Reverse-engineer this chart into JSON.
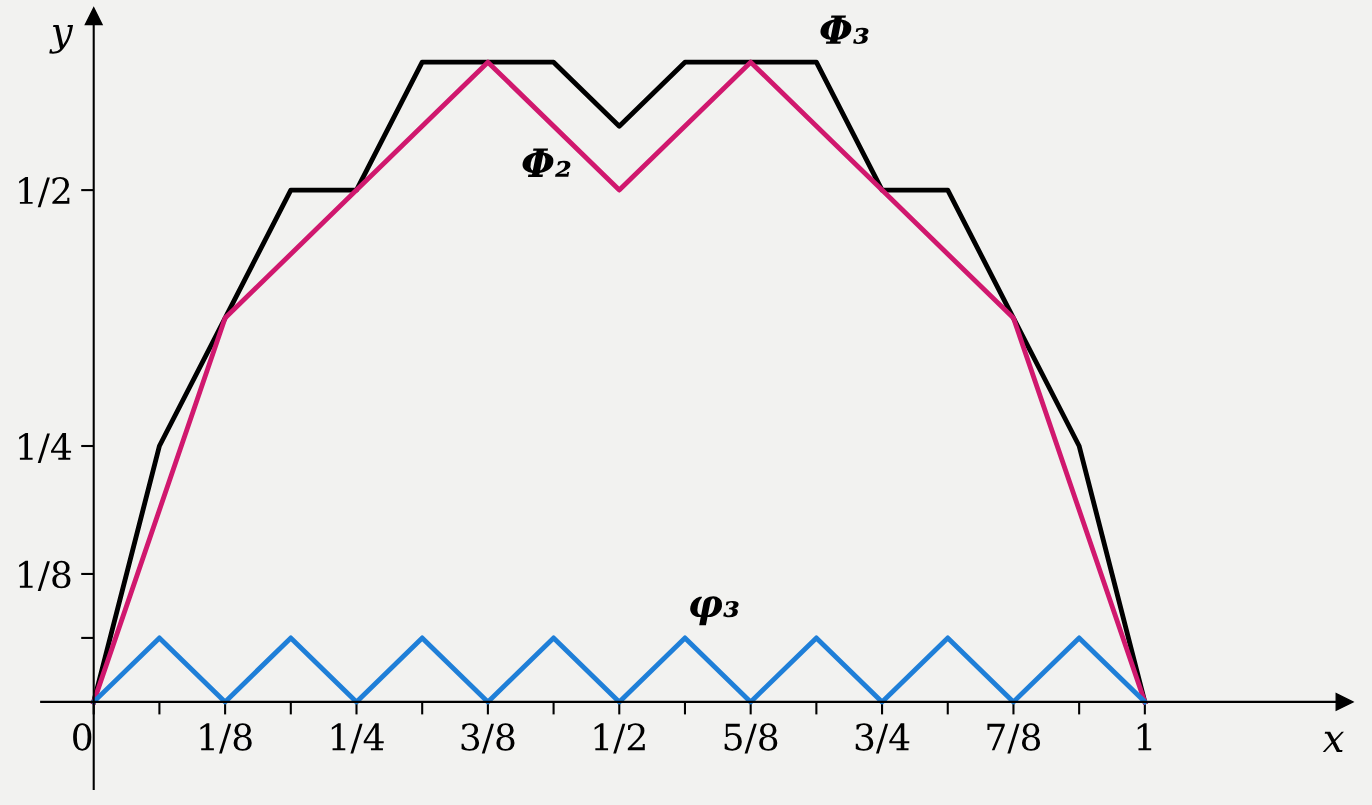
{
  "chart_data": {
    "type": "line",
    "xlabel": "x",
    "ylabel": "y",
    "xlim": [
      -0.05,
      1.19
    ],
    "ylim": [
      -0.085,
      0.67
    ],
    "xticks": [
      {
        "value": 0,
        "label": "0"
      },
      {
        "value": 0.0625,
        "label": null
      },
      {
        "value": 0.125,
        "label": "1/8"
      },
      {
        "value": 0.1875,
        "label": null
      },
      {
        "value": 0.25,
        "label": "1/4"
      },
      {
        "value": 0.3125,
        "label": null
      },
      {
        "value": 0.375,
        "label": "3/8"
      },
      {
        "value": 0.4375,
        "label": null
      },
      {
        "value": 0.5,
        "label": "1/2"
      },
      {
        "value": 0.5625,
        "label": null
      },
      {
        "value": 0.625,
        "label": "5/8"
      },
      {
        "value": 0.6875,
        "label": null
      },
      {
        "value": 0.75,
        "label": "3/4"
      },
      {
        "value": 0.8125,
        "label": null
      },
      {
        "value": 0.875,
        "label": "7/8"
      },
      {
        "value": 0.9375,
        "label": null
      },
      {
        "value": 1,
        "label": "1"
      }
    ],
    "yticks": [
      {
        "value": 0.0625,
        "label": null
      },
      {
        "value": 0.125,
        "label": "1/8"
      },
      {
        "value": 0.25,
        "label": "1/4"
      },
      {
        "value": 0.5,
        "label": "1/2"
      }
    ],
    "grid": false,
    "legend": false,
    "series": [
      {
        "name": "Φ₃",
        "color": "#000000",
        "x": [
          0,
          0.0625,
          0.125,
          0.1875,
          0.25,
          0.3125,
          0.4375,
          0.5,
          0.5625,
          0.6875,
          0.75,
          0.8125,
          0.875,
          0.9375,
          1
        ],
        "values": [
          0,
          0.25,
          0.375,
          0.5,
          0.5,
          0.625,
          0.625,
          0.5625,
          0.625,
          0.625,
          0.5,
          0.5,
          0.375,
          0.25,
          0
        ]
      },
      {
        "name": "Φ₂",
        "color": "#d0186e",
        "x": [
          0,
          0.125,
          0.25,
          0.375,
          0.5,
          0.625,
          0.75,
          0.875,
          1
        ],
        "values": [
          0,
          0.375,
          0.5,
          0.625,
          0.5,
          0.625,
          0.5,
          0.375,
          0
        ]
      },
      {
        "name": "φ₃",
        "color": "#1f7fd8",
        "x": [
          0,
          0.0625,
          0.125,
          0.1875,
          0.25,
          0.3125,
          0.375,
          0.4375,
          0.5,
          0.5625,
          0.625,
          0.6875,
          0.75,
          0.8125,
          0.875,
          0.9375,
          1
        ],
        "values": [
          0,
          0.0625,
          0,
          0.0625,
          0,
          0.0625,
          0,
          0.0625,
          0,
          0.0625,
          0,
          0.0625,
          0,
          0.0625,
          0,
          0.0625,
          0
        ]
      }
    ]
  }
}
